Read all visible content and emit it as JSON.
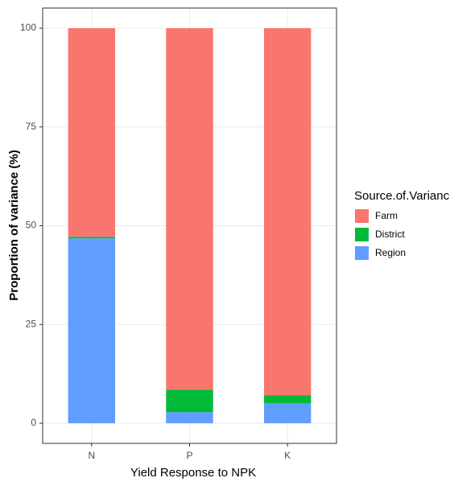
{
  "chart_data": {
    "type": "stacked_bar",
    "x_label": "Yield Response to NPK",
    "y_label": "Proportion of variance (%)",
    "legend_title": "Source.of.Variance",
    "legend_position": "right",
    "categories": [
      "N",
      "P",
      "K"
    ],
    "series": [
      {
        "name": "Farm",
        "color": "#F8766D",
        "values": [
          52.8,
          91.5,
          92.9
        ]
      },
      {
        "name": "District",
        "color": "#00BA38",
        "values": [
          0.4,
          5.7,
          2.0
        ]
      },
      {
        "name": "Region",
        "color": "#619CFF",
        "values": [
          46.8,
          2.8,
          5.1
        ]
      }
    ],
    "ylim": [
      -5.1,
      105.1
    ],
    "yticks": [
      0,
      25,
      50,
      75,
      100
    ],
    "grid": true
  }
}
